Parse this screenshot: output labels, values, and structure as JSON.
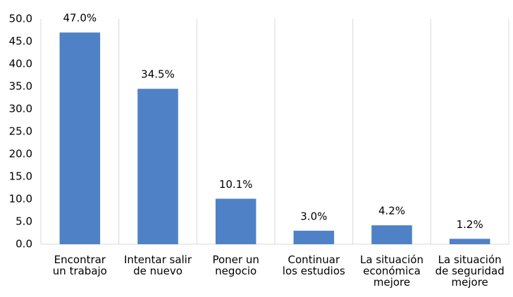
{
  "chart_data": {
    "type": "bar",
    "categories": [
      "Encontrar un trabajo",
      "Intentar salir de nuevo",
      "Poner un negocio",
      "Continuar los estudios",
      "La situación económica mejore",
      "La situación de seguridad mejore"
    ],
    "values": [
      47.0,
      34.5,
      10.1,
      3.0,
      4.2,
      1.2
    ],
    "value_labels": [
      "47.0%",
      "34.5%",
      "10.1%",
      "3.0%",
      "4.2%",
      "1.2%"
    ],
    "color": "#4f81c6",
    "ylim": [
      0,
      50
    ],
    "yticks": [
      {
        "value": 0,
        "label": "0.0"
      },
      {
        "value": 5,
        "label": "5.0"
      },
      {
        "value": 10,
        "label": "10.0"
      },
      {
        "value": 15,
        "label": "15.0"
      },
      {
        "value": 20,
        "label": "20.0"
      },
      {
        "value": 25,
        "label": "25.0"
      },
      {
        "value": 30,
        "label": "30.0"
      },
      {
        "value": 35,
        "label": "35.0"
      },
      {
        "value": 40,
        "label": "40.0"
      },
      {
        "value": 45,
        "label": "45.0"
      },
      {
        "value": 50,
        "label": "50.0"
      }
    ],
    "grid": true
  }
}
